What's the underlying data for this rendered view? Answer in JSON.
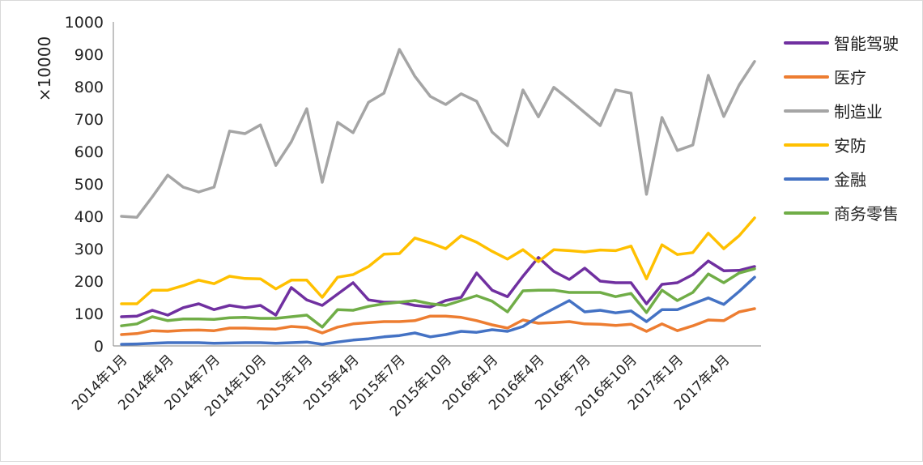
{
  "chart_data": {
    "type": "line",
    "title": "",
    "xlabel": "",
    "ylabel": "×10000",
    "ylim": [
      0,
      1000
    ],
    "yticks": [
      0,
      100,
      200,
      300,
      400,
      500,
      600,
      700,
      800,
      900,
      1000
    ],
    "grid": false,
    "legend_position": "right",
    "x_tick_labels": [
      {
        "index": 0,
        "label": "2014年1月"
      },
      {
        "index": 3,
        "label": "2014年4月"
      },
      {
        "index": 6,
        "label": "2014年7月"
      },
      {
        "index": 9,
        "label": "2014年10月"
      },
      {
        "index": 12,
        "label": "2015年1月"
      },
      {
        "index": 15,
        "label": "2015年4月"
      },
      {
        "index": 18,
        "label": "2015年7月"
      },
      {
        "index": 21,
        "label": "2015年10月"
      },
      {
        "index": 24,
        "label": "2016年1月"
      },
      {
        "index": 27,
        "label": "2016年4月"
      },
      {
        "index": 30,
        "label": "2016年7月"
      },
      {
        "index": 33,
        "label": "2016年10月"
      },
      {
        "index": 36,
        "label": "2017年1月"
      },
      {
        "index": 39,
        "label": "2017年4月"
      }
    ],
    "series": [
      {
        "name": "智能驾驶",
        "color": "#7030A0",
        "values": [
          90,
          92,
          110,
          95,
          118,
          130,
          112,
          125,
          118,
          125,
          95,
          180,
          142,
          125,
          160,
          195,
          142,
          135,
          135,
          125,
          120,
          140,
          150,
          225,
          172,
          152,
          215,
          273,
          230,
          205,
          240,
          200,
          195,
          195,
          130,
          190,
          195,
          220,
          262,
          232,
          233,
          245
        ]
      },
      {
        "name": "医疗",
        "color": "#ED7D31",
        "values": [
          35,
          38,
          47,
          45,
          48,
          49,
          47,
          55,
          55,
          53,
          52,
          60,
          57,
          40,
          58,
          68,
          72,
          75,
          75,
          78,
          92,
          92,
          88,
          78,
          65,
          55,
          80,
          70,
          72,
          75,
          68,
          67,
          63,
          67,
          45,
          68,
          47,
          62,
          80,
          78,
          105,
          115
        ]
      },
      {
        "name": "制造业",
        "color": "#A5A5A5",
        "values": [
          400,
          397,
          460,
          527,
          490,
          475,
          490,
          663,
          655,
          682,
          557,
          630,
          732,
          505,
          690,
          658,
          752,
          780,
          915,
          832,
          770,
          745,
          778,
          755,
          660,
          618,
          790,
          707,
          798,
          760,
          720,
          680,
          790,
          780,
          468,
          705,
          603,
          620,
          835,
          708,
          805,
          878
        ]
      },
      {
        "name": "安防",
        "color": "#FFC000",
        "values": [
          130,
          130,
          172,
          172,
          186,
          203,
          192,
          215,
          208,
          207,
          176,
          203,
          203,
          150,
          212,
          220,
          245,
          283,
          285,
          333,
          318,
          300,
          340,
          320,
          292,
          268,
          297,
          260,
          297,
          294,
          290,
          296,
          294,
          308,
          207,
          312,
          282,
          288,
          348,
          300,
          340,
          395
        ]
      },
      {
        "name": "金融",
        "color": "#4472C4",
        "values": [
          5,
          6,
          8,
          10,
          10,
          10,
          8,
          9,
          10,
          10,
          8,
          10,
          12,
          5,
          12,
          18,
          22,
          28,
          32,
          40,
          28,
          35,
          45,
          42,
          50,
          45,
          60,
          90,
          115,
          140,
          105,
          110,
          102,
          108,
          75,
          112,
          112,
          130,
          148,
          128,
          168,
          212
        ]
      },
      {
        "name": "商务零售",
        "color": "#70AD47",
        "values": [
          62,
          68,
          90,
          78,
          83,
          83,
          82,
          87,
          88,
          85,
          85,
          90,
          95,
          58,
          112,
          110,
          122,
          130,
          135,
          140,
          130,
          125,
          140,
          155,
          138,
          105,
          170,
          172,
          172,
          165,
          165,
          165,
          152,
          162,
          103,
          172,
          140,
          165,
          222,
          195,
          225,
          238
        ]
      }
    ]
  }
}
